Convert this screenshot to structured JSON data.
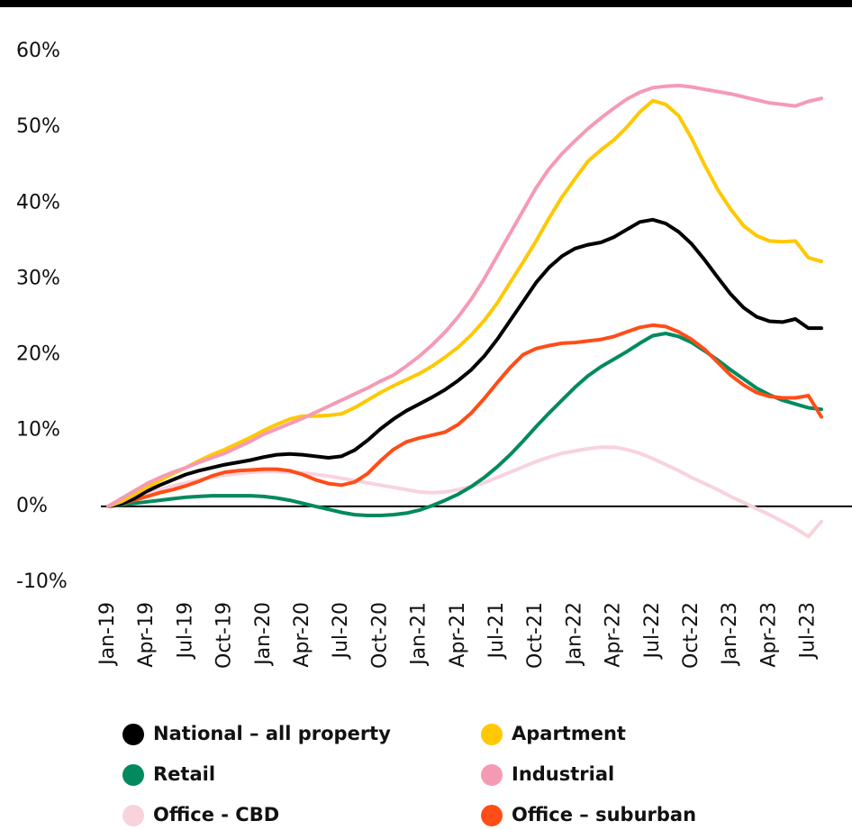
{
  "chart_data": {
    "type": "line",
    "categories": [
      "Jan-19",
      null,
      null,
      "Apr-19",
      null,
      null,
      "Jul-19",
      null,
      null,
      "Oct-19",
      null,
      null,
      "Jan-20",
      null,
      null,
      "Apr-20",
      null,
      null,
      "Jul-20",
      null,
      null,
      "Oct-20",
      null,
      null,
      "Jan-21",
      null,
      null,
      "Apr-21",
      null,
      null,
      "Jul-21",
      null,
      null,
      "Oct-21",
      null,
      null,
      "Jan-22",
      null,
      null,
      "Apr-22",
      null,
      null,
      "Jul-22",
      null,
      null,
      "Oct-22",
      null,
      null,
      "Jan-23",
      null,
      null,
      "Apr-23",
      null,
      null,
      "Jul-23",
      null
    ],
    "series": [
      {
        "name": "National – all property",
        "color": "#000000",
        "values": [
          0,
          0.3,
          1.0,
          2.0,
          2.8,
          3.5,
          4.2,
          4.7,
          5.1,
          5.5,
          5.8,
          6.1,
          6.5,
          6.8,
          6.9,
          6.8,
          6.6,
          6.4,
          6.6,
          7.4,
          8.7,
          10.2,
          11.5,
          12.6,
          13.5,
          14.4,
          15.4,
          16.6,
          18.0,
          19.8,
          22.0,
          24.5,
          27.0,
          29.5,
          31.5,
          33.0,
          34.0,
          34.5,
          34.8,
          35.5,
          36.5,
          37.5,
          37.8,
          37.3,
          36.2,
          34.6,
          32.5,
          30.2,
          28.0,
          26.2,
          25.0,
          24.4,
          24.3,
          24.7,
          23.5,
          23.5
        ]
      },
      {
        "name": "Apartment",
        "color": "#ffc800",
        "values": [
          0,
          0.6,
          1.5,
          2.5,
          3.4,
          4.3,
          5.1,
          6.0,
          6.8,
          7.5,
          8.3,
          9.1,
          10.0,
          10.8,
          11.5,
          11.9,
          11.9,
          12.0,
          12.2,
          13.0,
          14.0,
          15.0,
          15.9,
          16.7,
          17.5,
          18.5,
          19.7,
          21.0,
          22.6,
          24.5,
          26.8,
          29.5,
          32.2,
          35.0,
          38.0,
          40.8,
          43.2,
          45.5,
          47.0,
          48.3,
          50.0,
          52.0,
          53.5,
          53.0,
          51.5,
          48.5,
          45.0,
          41.8,
          39.2,
          37.0,
          35.7,
          35.0,
          34.9,
          35.0,
          32.8,
          32.3
        ]
      },
      {
        "name": "Retail",
        "color": "#008a5e",
        "values": [
          0,
          0.2,
          0.4,
          0.6,
          0.8,
          1.0,
          1.2,
          1.3,
          1.4,
          1.4,
          1.4,
          1.4,
          1.3,
          1.1,
          0.8,
          0.4,
          0.0,
          -0.4,
          -0.8,
          -1.1,
          -1.2,
          -1.2,
          -1.1,
          -0.9,
          -0.5,
          0.1,
          0.8,
          1.6,
          2.6,
          3.8,
          5.2,
          6.8,
          8.6,
          10.5,
          12.3,
          14.0,
          15.7,
          17.2,
          18.4,
          19.4,
          20.4,
          21.5,
          22.5,
          22.8,
          22.4,
          21.6,
          20.5,
          19.3,
          18.0,
          16.8,
          15.6,
          14.7,
          14.0,
          13.5,
          13.0,
          12.8
        ]
      },
      {
        "name": "Industrial",
        "color": "#f59ab5",
        "values": [
          0,
          1.0,
          2.0,
          3.0,
          3.8,
          4.5,
          5.1,
          5.8,
          6.4,
          7.0,
          7.8,
          8.6,
          9.5,
          10.2,
          10.9,
          11.6,
          12.4,
          13.2,
          14.0,
          14.8,
          15.6,
          16.5,
          17.3,
          18.5,
          19.8,
          21.3,
          23.0,
          25.0,
          27.3,
          30.0,
          33.0,
          36.0,
          39.0,
          42.0,
          44.5,
          46.5,
          48.2,
          49.8,
          51.2,
          52.5,
          53.7,
          54.6,
          55.2,
          55.4,
          55.5,
          55.3,
          55.0,
          54.7,
          54.4,
          54.0,
          53.6,
          53.2,
          53.0,
          52.8,
          53.4,
          53.8
        ]
      },
      {
        "name": "Office - CBD",
        "color": "#f8d3dc",
        "values": [
          0,
          0.5,
          1.1,
          1.7,
          2.2,
          2.7,
          3.1,
          3.5,
          3.8,
          4.1,
          4.3,
          4.5,
          4.6,
          4.6,
          4.5,
          4.4,
          4.2,
          4.0,
          3.7,
          3.4,
          3.1,
          2.8,
          2.5,
          2.2,
          1.9,
          1.8,
          1.9,
          2.2,
          2.6,
          3.1,
          3.8,
          4.5,
          5.2,
          5.9,
          6.5,
          7.0,
          7.3,
          7.6,
          7.8,
          7.8,
          7.5,
          7.0,
          6.3,
          5.5,
          4.7,
          3.8,
          3.0,
          2.2,
          1.3,
          0.5,
          -0.3,
          -1.1,
          -2.0,
          -2.9,
          -4.0,
          -2.0
        ]
      },
      {
        "name": "Office – suburban",
        "color": "#ff4d17",
        "values": [
          0,
          0.3,
          0.8,
          1.3,
          1.8,
          2.2,
          2.7,
          3.3,
          4.0,
          4.5,
          4.7,
          4.8,
          4.9,
          4.9,
          4.7,
          4.2,
          3.5,
          3.0,
          2.8,
          3.2,
          4.3,
          6.0,
          7.5,
          8.5,
          9.0,
          9.4,
          9.8,
          10.8,
          12.3,
          14.2,
          16.3,
          18.3,
          20.0,
          20.8,
          21.2,
          21.5,
          21.6,
          21.8,
          22.0,
          22.4,
          23.0,
          23.6,
          23.9,
          23.7,
          23.0,
          22.0,
          20.7,
          19.0,
          17.3,
          16.0,
          15.0,
          14.5,
          14.3,
          14.3,
          14.6,
          11.8
        ]
      }
    ],
    "ylim": [
      -10,
      60
    ],
    "yticks": [
      {
        "value": -10,
        "label": "-10%"
      },
      {
        "value": 0,
        "label": "0%"
      },
      {
        "value": 10,
        "label": "10%"
      },
      {
        "value": 20,
        "label": "20%"
      },
      {
        "value": 30,
        "label": "30%"
      },
      {
        "value": 40,
        "label": "40%"
      },
      {
        "value": 50,
        "label": "50%"
      },
      {
        "value": 60,
        "label": "60%"
      }
    ],
    "grid": false,
    "legend": "bottom"
  }
}
